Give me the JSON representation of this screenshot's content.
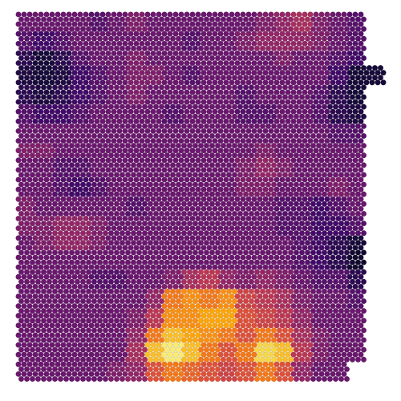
{
  "chart_data": {
    "type": "heatmap",
    "colormap": [
      "#000004",
      "#160b39",
      "#420a68",
      "#6a176e",
      "#932667",
      "#bc3754",
      "#dd513a",
      "#f37819",
      "#fca50a",
      "#f6d746",
      "#fcffa4"
    ],
    "values": [
      [
        0.3,
        0.3,
        0.3,
        0.3,
        0.25,
        0.3,
        0.35,
        0.3,
        0.3,
        0.3,
        0.3,
        0.3,
        0.3,
        0.35,
        0.4,
        0.45,
        0.35,
        0.3,
        0.25,
        null
      ],
      [
        0.25,
        0.2,
        0.25,
        0.3,
        0.3,
        0.3,
        0.3,
        0.3,
        0.3,
        0.25,
        0.3,
        0.3,
        0.35,
        0.4,
        0.4,
        0.4,
        0.35,
        0.3,
        0.25,
        null
      ],
      [
        0.15,
        0.1,
        0.15,
        0.25,
        0.3,
        0.3,
        0.35,
        0.3,
        0.3,
        0.3,
        0.3,
        0.3,
        0.3,
        0.3,
        0.35,
        0.3,
        0.3,
        0.25,
        0.2,
        null
      ],
      [
        0.12,
        0.1,
        0.12,
        0.2,
        0.25,
        0.3,
        0.35,
        0.35,
        0.3,
        0.25,
        0.3,
        0.3,
        0.3,
        0.3,
        0.3,
        0.3,
        0.3,
        0.2,
        0.1,
        0.1
      ],
      [
        0.15,
        0.12,
        0.15,
        0.2,
        0.25,
        0.3,
        0.35,
        0.3,
        0.3,
        0.3,
        0.3,
        0.3,
        0.25,
        0.3,
        0.3,
        0.3,
        0.25,
        0.15,
        0.1,
        null
      ],
      [
        0.25,
        0.2,
        0.2,
        0.25,
        0.3,
        0.3,
        0.3,
        0.3,
        0.25,
        0.3,
        0.3,
        0.3,
        0.25,
        0.25,
        0.3,
        0.3,
        0.25,
        0.15,
        0.12,
        null
      ],
      [
        0.3,
        0.3,
        0.3,
        0.3,
        0.3,
        0.3,
        0.3,
        0.3,
        0.3,
        0.3,
        0.3,
        0.3,
        0.3,
        0.3,
        0.3,
        0.3,
        0.3,
        0.25,
        0.25,
        null
      ],
      [
        0.35,
        0.35,
        0.3,
        0.3,
        0.3,
        0.3,
        0.3,
        0.3,
        0.3,
        0.3,
        0.3,
        0.3,
        0.3,
        0.35,
        0.3,
        0.3,
        0.3,
        0.3,
        0.3,
        null
      ],
      [
        0.3,
        0.3,
        0.25,
        0.25,
        0.3,
        0.3,
        0.3,
        0.3,
        0.3,
        0.3,
        0.3,
        0.3,
        0.35,
        0.4,
        0.35,
        0.3,
        0.3,
        0.3,
        0.3,
        null
      ],
      [
        0.3,
        0.3,
        0.25,
        0.2,
        0.25,
        0.3,
        0.3,
        0.3,
        0.3,
        0.3,
        0.3,
        0.3,
        0.35,
        0.35,
        0.3,
        0.3,
        0.3,
        0.35,
        0.3,
        null
      ],
      [
        0.35,
        0.3,
        0.3,
        0.3,
        0.3,
        0.3,
        0.25,
        0.3,
        0.3,
        0.3,
        0.3,
        0.3,
        0.3,
        0.3,
        0.25,
        0.25,
        0.2,
        0.25,
        0.3,
        null
      ],
      [
        0.35,
        0.35,
        0.4,
        0.4,
        0.35,
        0.3,
        0.3,
        0.3,
        0.3,
        0.3,
        0.3,
        0.3,
        0.3,
        0.3,
        0.25,
        0.25,
        0.2,
        0.2,
        0.25,
        null
      ],
      [
        0.3,
        0.35,
        0.4,
        0.4,
        0.35,
        0.3,
        0.3,
        0.3,
        0.3,
        0.3,
        0.3,
        0.3,
        0.3,
        0.3,
        0.3,
        0.25,
        0.2,
        0.15,
        0.1,
        null
      ],
      [
        0.3,
        0.3,
        0.3,
        0.3,
        0.3,
        0.3,
        0.3,
        0.3,
        0.3,
        0.3,
        0.3,
        0.3,
        0.3,
        0.3,
        0.3,
        0.25,
        0.2,
        0.15,
        0.08,
        null
      ],
      [
        0.3,
        0.3,
        0.3,
        0.3,
        0.25,
        0.25,
        0.3,
        0.3,
        0.35,
        0.45,
        0.5,
        0.4,
        0.35,
        0.4,
        0.35,
        0.3,
        0.25,
        0.25,
        0.15,
        null
      ],
      [
        0.3,
        0.3,
        0.3,
        0.3,
        0.3,
        0.3,
        0.3,
        0.4,
        0.7,
        0.75,
        0.7,
        0.75,
        0.55,
        0.5,
        0.45,
        0.35,
        0.3,
        0.3,
        0.25,
        null
      ],
      [
        0.3,
        0.3,
        0.3,
        0.3,
        0.3,
        0.3,
        0.35,
        0.5,
        0.75,
        0.75,
        0.8,
        0.8,
        0.6,
        0.55,
        0.5,
        0.4,
        0.3,
        0.3,
        0.3,
        null
      ],
      [
        0.3,
        0.3,
        0.3,
        0.3,
        0.3,
        0.3,
        0.4,
        0.7,
        0.85,
        0.8,
        0.75,
        0.7,
        0.6,
        0.7,
        0.6,
        0.45,
        0.35,
        0.3,
        0.3,
        null
      ],
      [
        0.3,
        0.3,
        0.3,
        0.3,
        0.3,
        0.3,
        0.45,
        0.85,
        0.95,
        0.85,
        0.7,
        0.6,
        0.7,
        0.9,
        0.85,
        0.5,
        0.35,
        0.3,
        0.3,
        null
      ],
      [
        0.3,
        0.3,
        0.3,
        0.3,
        0.3,
        0.35,
        0.4,
        0.6,
        0.7,
        0.65,
        0.6,
        0.55,
        0.6,
        0.7,
        0.6,
        0.4,
        0.3,
        0.3,
        null,
        null
      ]
    ]
  }
}
